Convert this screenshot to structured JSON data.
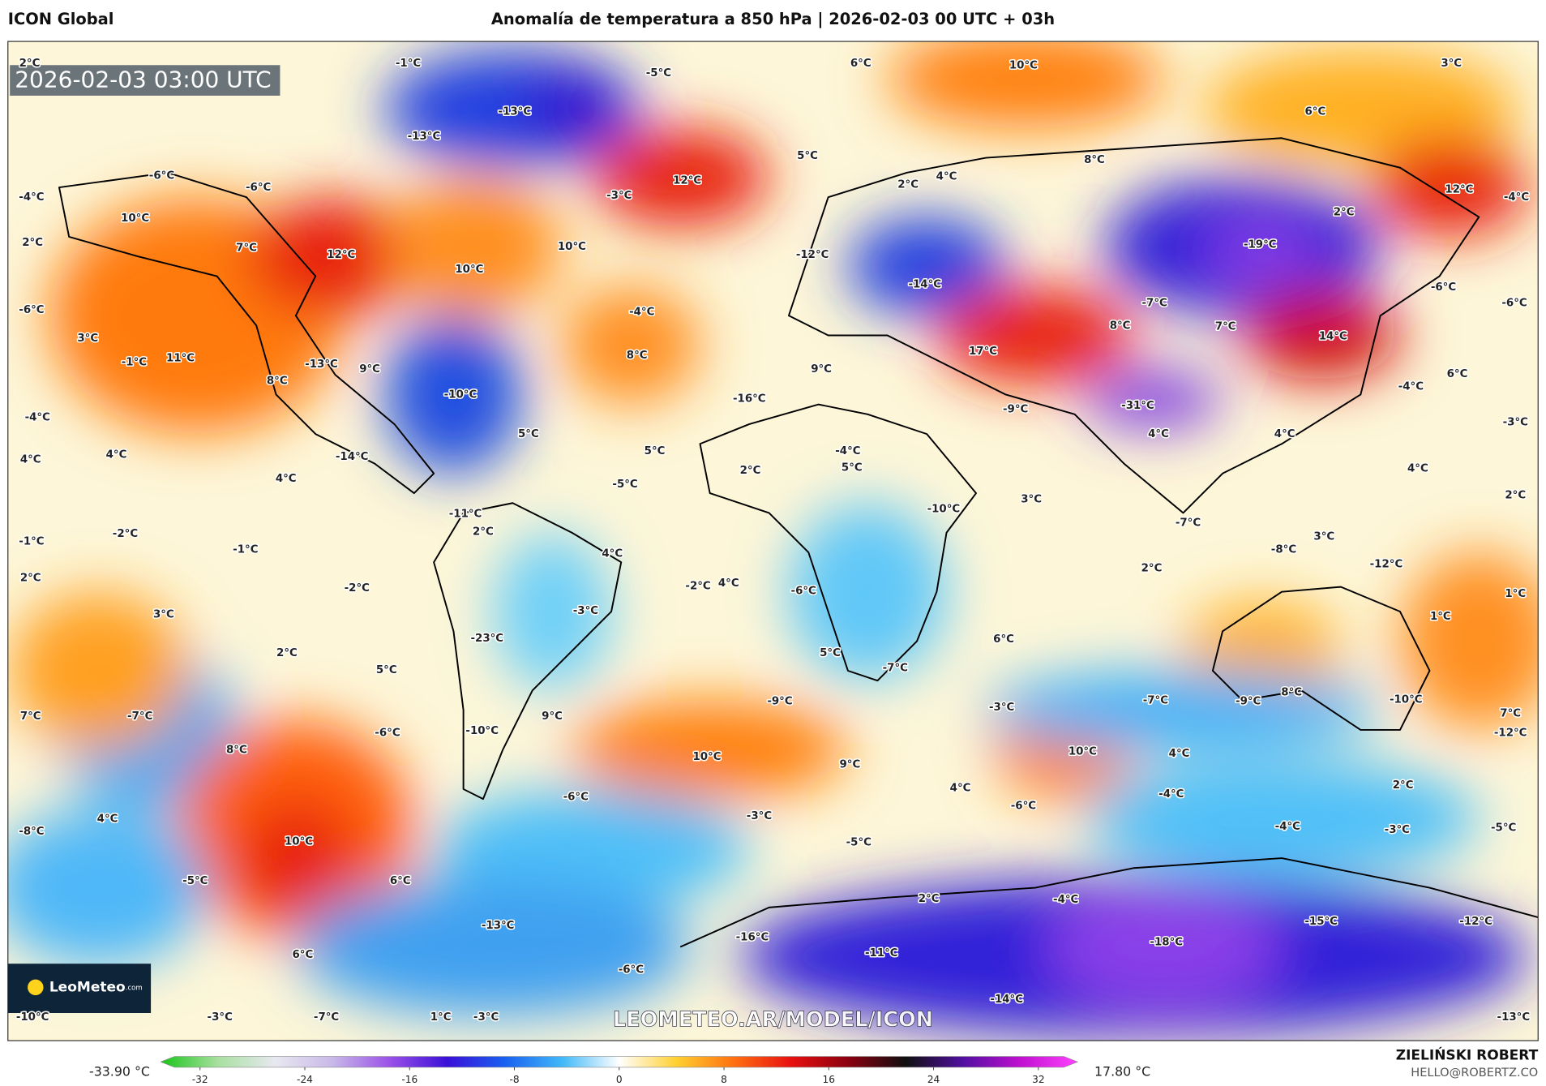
{
  "header": {
    "model": "ICON Global",
    "title": "Anomalía de temperatura a 850 hPa | 2026-02-03 00 UTC + 03h"
  },
  "map": {
    "timestamp": "2026-02-03 03:00 UTC",
    "watermark": "LEOMETEO.AR/MODEL/ICON",
    "logo": "LeoMeteo",
    "logo_suffix": ".com",
    "labels": [
      "2°C",
      "-1°C",
      "-5°C",
      "6°C",
      "10°C",
      "3°C",
      "-13°C",
      "-13°C",
      "6°C",
      "-6°C",
      "-6°C",
      "-3°C",
      "12°C",
      "5°C",
      "8°C",
      "4°C",
      "2°C",
      "12°C",
      "-4°C",
      "-4°C",
      "10°C",
      "2°C",
      "7°C",
      "12°C",
      "10°C",
      "10°C",
      "2°C",
      "-19°C",
      "-12°C",
      "-14°C",
      "-6°C",
      "-6°C",
      "-6°C",
      "3°C",
      "-1°C",
      "11°C",
      "8°C",
      "-13°C",
      "9°C",
      "-4°C",
      "8°C",
      "-7°C",
      "8°C",
      "7°C",
      "17°C",
      "14°C",
      "6°C",
      "-4°C",
      "-10°C",
      "-4°C",
      "9°C",
      "-16°C",
      "-9°C",
      "-31°C",
      "-3°C",
      "4°C",
      "4°C",
      "-14°C",
      "4°C",
      "5°C",
      "5°C",
      "-4°C",
      "5°C",
      "2°C",
      "-5°C",
      "4°C",
      "4°C",
      "4°C",
      "2°C",
      "-1°C",
      "-2°C",
      "-1°C",
      "-11°C",
      "2°C",
      "4°C",
      "-10°C",
      "3°C",
      "-7°C",
      "-8°C",
      "3°C",
      "-12°C",
      "2°C",
      "-2°C",
      "-3°C",
      "-2°C",
      "4°C",
      "-6°C",
      "2°C",
      "1°C",
      "1°C",
      "3°C",
      "2°C",
      "5°C",
      "-23°C",
      "5°C",
      "6°C",
      "-7°C",
      "7°C",
      "-7°C",
      "-6°C",
      "9°C",
      "-10°C",
      "-9°C",
      "-3°C",
      "-7°C",
      "-9°C",
      "8°C",
      "-10°C",
      "7°C",
      "-12°C",
      "8°C",
      "10°C",
      "9°C",
      "10°C",
      "4°C",
      "2°C",
      "4°C",
      "-4°C",
      "-6°C",
      "-3°C",
      "-6°C",
      "4°C",
      "-8°C",
      "-4°C",
      "-3°C",
      "-5°C",
      "10°C",
      "-5°C",
      "-5°C",
      "6°C",
      "2°C",
      "-4°C",
      "-13°C",
      "-15°C",
      "-12°C",
      "-16°C",
      "-18°C",
      "6°C",
      "-11°C",
      "-6°C",
      "-14°C",
      "-10°C",
      "-3°C",
      "-7°C",
      "1°C",
      "-3°C",
      "-13°C"
    ]
  },
  "colorbar": {
    "min_label": "-33.90 °C",
    "max_label": "17.80 °C",
    "lim": [
      -35,
      35
    ],
    "ticks": [
      -32,
      -24,
      -16,
      -8,
      0,
      8,
      16,
      24,
      32
    ],
    "colors": [
      "#18c418",
      "#a8e0a0",
      "#e8e8f0",
      "#c8b8e8",
      "#9a50e8",
      "#3a10d8",
      "#1a60f0",
      "#40b8f8",
      "#ffffff",
      "#ffd030",
      "#ff7010",
      "#e81010",
      "#8a0010",
      "#101010",
      "#5010a0",
      "#c010d0",
      "#ff40ff"
    ]
  },
  "credits": {
    "author": "ZIELIŃSKI ROBERT",
    "email": "HELLO@ROBERTZ.CO"
  }
}
